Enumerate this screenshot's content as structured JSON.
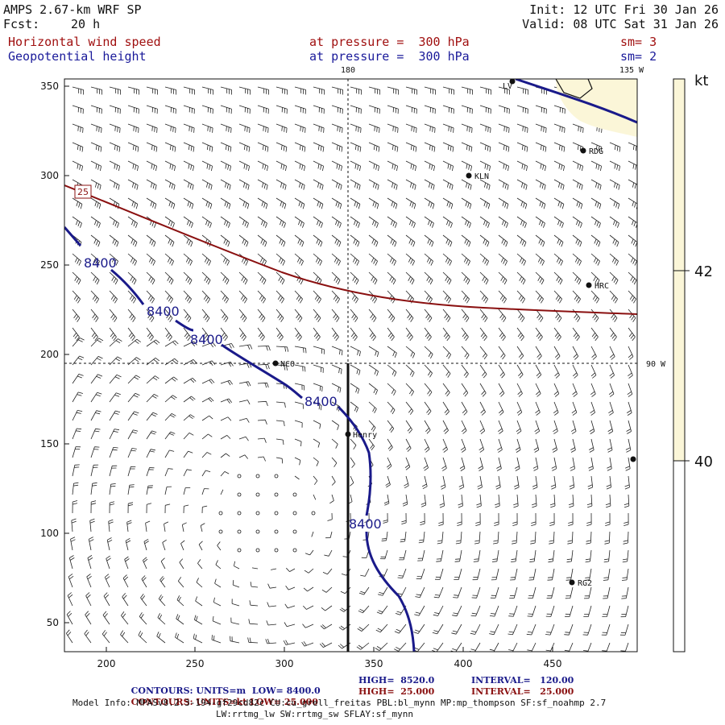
{
  "header": {
    "model": "AMPS 2.67-km WRF SP",
    "fcst_label": "Fcst:",
    "fcst_value": "20 h",
    "init": "Init: 12 UTC Fri 30 Jan 26",
    "valid": "Valid: 08 UTC Sat 31 Jan 26",
    "field1": "Horizontal wind speed",
    "field1_level": "at pressure =  300 hPa",
    "field1_sm": "sm= 3",
    "field2": "Geopotential height",
    "field2_level": "at pressure =  300 hPa",
    "field2_sm": "sm= 2"
  },
  "map": {
    "meridian_labels": [
      "180",
      "135 W",
      "90 W"
    ],
    "x_ticks": [
      "200",
      "250",
      "300",
      "350",
      "400",
      "450"
    ],
    "y_ticks": [
      "50",
      "100",
      "150",
      "200",
      "250",
      "300",
      "350"
    ],
    "contour_labels": [
      "8400",
      "8400",
      "8400",
      "8400",
      "8400"
    ],
    "wind_contour_label": "25",
    "stations": [
      "NCO",
      "Henry",
      "KLN",
      "RDG",
      "HRC",
      "RG2",
      "LV"
    ]
  },
  "colorbar": {
    "unit": "kt",
    "labels": [
      "42",
      "40"
    ],
    "colors": {
      "fill": "#fbf6d8",
      "outline": "#111111"
    }
  },
  "footer": {
    "row1": {
      "title": "CONTOURS:",
      "units": "UNITS=m",
      "low": "LOW=",
      "low_val": "8400.0",
      "high": "HIGH=",
      "high_val": "8520.0",
      "interval": "INTERVAL=",
      "interval_val": "120.00"
    },
    "row2": {
      "title": "CONTOURS:",
      "units": "UNITS=kt",
      "low": "LOW=",
      "low_val": "25.000",
      "high": "HIGH=",
      "high_val": "25.000",
      "interval": "INTERVAL=",
      "interval_val": "25.000"
    },
    "model_info": "Model Info: MPASv8.2.3-194-gf29cd82c CU:cu_grell_freitas PBL:bl_mynn MP:mp_thompson SF:sf_noahmp 2.7",
    "model_info2": "LW:rrtmg_lw SW:rrtmg_sw SFLAY:sf_mynn"
  },
  "colors": {
    "height_contour": "#1a1a8a",
    "wind_contour": "#8a1010",
    "title_red": "#a01010",
    "title_blue": "#1a1a9a"
  }
}
